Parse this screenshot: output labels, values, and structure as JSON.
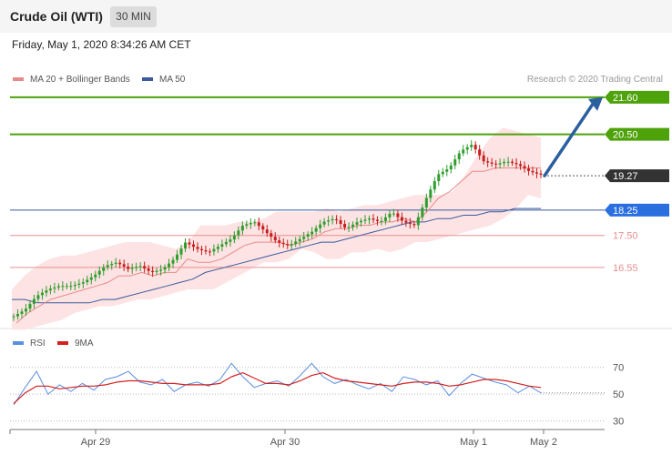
{
  "header": {
    "title": "Crude Oil (WTI)",
    "interval": "30 MIN",
    "datetime": "Friday, May 1, 2020 8:34:26 AM CET"
  },
  "legend": {
    "ma20": "MA 20 + Bollinger Bands",
    "ma50": "MA 50",
    "credit": "Research © 2020 Trading Central",
    "rsi": "RSI",
    "rsi_ma": "9MA"
  },
  "colors": {
    "up_candle": "#2e9e2e",
    "down_candle": "#c81e1e",
    "ma20": "#e88a8a",
    "ma50": "#3a5a9f",
    "bollinger_fill": "#fde3e3",
    "resistance": "#4ea20a",
    "support": "#e89090",
    "pivot": "#2a6ee0",
    "last": "#333333",
    "arrow": "#2a5fa0",
    "rsi": "#5b8fe0",
    "rsi_ma": "#d42020"
  },
  "chart_data": [
    {
      "type": "candlestick",
      "x_labels": [
        "Apr 29",
        "Apr 30",
        "May 1",
        "May 2"
      ],
      "ylim": [
        14.9,
        22.0
      ],
      "levels": [
        {
          "label": "21.60",
          "value": 21.6,
          "kind": "resistance"
        },
        {
          "label": "20.50",
          "value": 20.5,
          "kind": "resistance"
        },
        {
          "label": "19.27",
          "value": 19.27,
          "kind": "last"
        },
        {
          "label": "18.25",
          "value": 18.25,
          "kind": "pivot"
        },
        {
          "label": "17.50",
          "value": 17.5,
          "kind": "support"
        },
        {
          "label": "16.55",
          "value": 16.55,
          "kind": "support"
        }
      ],
      "price_path": [
        15.1,
        15.3,
        15.7,
        15.9,
        16.0,
        16.0,
        16.1,
        16.3,
        16.6,
        16.7,
        16.5,
        16.6,
        16.4,
        16.5,
        16.8,
        17.3,
        17.1,
        17.0,
        17.2,
        17.4,
        17.8,
        17.9,
        17.6,
        17.3,
        17.2,
        17.4,
        17.6,
        17.9,
        18.0,
        17.7,
        17.9,
        18.0,
        17.9,
        18.2,
        17.9,
        17.8,
        18.6,
        19.3,
        19.5,
        20.0,
        20.2,
        19.7,
        19.6,
        19.7,
        19.6,
        19.4,
        19.3
      ],
      "ma20_path": [
        14.9,
        15.2,
        15.4,
        15.6,
        15.7,
        15.8,
        15.9,
        16.0,
        16.1,
        16.3,
        16.3,
        16.4,
        16.3,
        16.4,
        16.4,
        16.8,
        16.7,
        16.7,
        16.8,
        17.0,
        17.2,
        17.3,
        17.3,
        17.3,
        17.2,
        17.3,
        17.4,
        17.6,
        17.7,
        17.7,
        17.8,
        17.8,
        17.9,
        17.9,
        18.0,
        17.9,
        18.2,
        18.6,
        18.8,
        19.1,
        19.4,
        19.4,
        19.5,
        19.5,
        19.5,
        19.5,
        19.5
      ],
      "ma50_path": [
        15.6,
        15.6,
        15.5,
        15.5,
        15.5,
        15.5,
        15.5,
        15.6,
        15.6,
        15.7,
        15.8,
        15.9,
        16.0,
        16.1,
        16.2,
        16.4,
        16.5,
        16.6,
        16.7,
        16.8,
        16.9,
        17.0,
        17.1,
        17.2,
        17.3,
        17.3,
        17.4,
        17.5,
        17.6,
        17.7,
        17.8,
        17.9,
        17.9,
        18.0,
        18.0,
        18.1,
        18.1,
        18.2,
        18.2,
        18.3,
        18.3,
        18.3
      ],
      "bb_upper": [
        15.9,
        16.3,
        16.6,
        16.8,
        16.9,
        16.9,
        17.0,
        17.1,
        17.2,
        17.3,
        17.3,
        17.3,
        17.2,
        17.1,
        17.3,
        17.8,
        17.8,
        17.8,
        17.9,
        17.9,
        18.0,
        18.2,
        18.2,
        18.2,
        18.2,
        18.3,
        18.2,
        18.3,
        18.4,
        18.4,
        18.5,
        18.6,
        18.7,
        18.7,
        18.7,
        18.8,
        19.3,
        19.9,
        20.4,
        20.7,
        20.6,
        20.5,
        20.4
      ],
      "bb_lower": [
        14.7,
        14.7,
        14.8,
        14.9,
        15.0,
        15.2,
        15.3,
        15.4,
        15.4,
        15.5,
        15.6,
        15.6,
        15.7,
        15.8,
        15.9,
        15.9,
        15.9,
        16.1,
        16.3,
        16.5,
        16.7,
        16.7,
        16.8,
        17.1,
        17.0,
        16.8,
        16.8,
        17.0,
        17.0,
        17.1,
        17.0,
        17.1,
        17.3,
        17.3,
        17.4,
        17.5,
        17.6,
        17.7,
        17.8,
        18.0,
        18.3,
        18.7,
        18.6
      ],
      "forecast_target": 21.6
    },
    {
      "type": "line",
      "title": "RSI",
      "ylim": [
        25,
        80
      ],
      "yticks": [
        30,
        50,
        70
      ],
      "series": [
        {
          "name": "RSI",
          "values": [
            42,
            55,
            67,
            50,
            57,
            52,
            58,
            53,
            61,
            63,
            67,
            59,
            57,
            61,
            52,
            57,
            59,
            56,
            61,
            73,
            63,
            55,
            58,
            60,
            56,
            64,
            73,
            63,
            58,
            61,
            57,
            54,
            58,
            52,
            63,
            61,
            57,
            60,
            49,
            58,
            65,
            62,
            59,
            57,
            51,
            56,
            51
          ]
        },
        {
          "name": "9MA",
          "values": [
            43,
            51,
            56,
            56,
            54,
            55,
            56,
            56,
            57,
            59,
            60,
            60,
            59,
            58,
            58,
            57,
            57,
            57,
            58,
            63,
            66,
            62,
            58,
            58,
            57,
            60,
            64,
            66,
            62,
            60,
            59,
            58,
            57,
            56,
            58,
            59,
            59,
            58,
            56,
            57,
            59,
            61,
            61,
            60,
            58,
            56,
            55
          ]
        }
      ]
    }
  ]
}
